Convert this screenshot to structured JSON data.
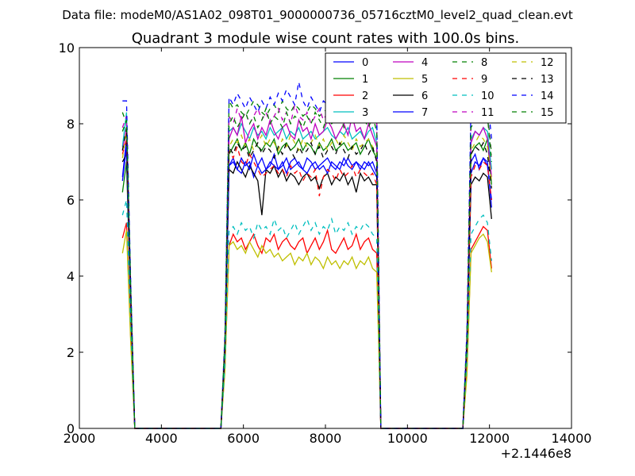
{
  "figure": {
    "suptitle": "Data file: modeM0/AS1A02_098T01_9000000736_05716cztM0_level2_quad_clean.evt"
  },
  "chart_data": {
    "type": "line",
    "title": "Quadrant 3 module wise count rates with 100.0s bins.",
    "xlabel": "",
    "ylabel": "",
    "xlim": [
      2000,
      14000
    ],
    "ylim": [
      0,
      10
    ],
    "x_offset_label": "+2.1446e8",
    "xticks": [
      2000,
      4000,
      6000,
      8000,
      10000,
      12000,
      14000
    ],
    "xtick_labels": [
      "2000",
      "4000",
      "6000",
      "8000",
      "10000",
      "12000",
      "14000"
    ],
    "yticks": [
      0,
      2,
      4,
      6,
      8,
      10
    ],
    "ytick_labels": [
      "0",
      "2",
      "4",
      "6",
      "8",
      "10"
    ],
    "grid": false,
    "legend": {
      "placement": "top-right",
      "columns": 4
    },
    "x": [
      3050,
      3150,
      3250,
      3350,
      3450,
      5450,
      5550,
      5650,
      5750,
      5850,
      5950,
      6050,
      6150,
      6250,
      6350,
      6450,
      6550,
      6650,
      6750,
      6850,
      6950,
      7050,
      7150,
      7250,
      7350,
      7450,
      7550,
      7650,
      7750,
      7850,
      7950,
      8050,
      8150,
      8250,
      8350,
      8450,
      8550,
      8650,
      8750,
      8850,
      8950,
      9050,
      9150,
      9250,
      9350,
      9450,
      11350,
      11450,
      11550,
      11650,
      11750,
      11850,
      11950,
      12050
    ],
    "series": [
      {
        "name": "0",
        "color": "#0000ff",
        "dash": "solid",
        "values": [
          6.6,
          7.6,
          3.4,
          0,
          0,
          0,
          2.0,
          6.9,
          7.0,
          6.8,
          7.1,
          6.9,
          7.0,
          6.6,
          6.9,
          7.1,
          6.8,
          6.9,
          7.2,
          6.8,
          7.0,
          6.7,
          7.0,
          7.1,
          6.9,
          6.8,
          7.1,
          7.0,
          6.8,
          6.9,
          7.0,
          7.1,
          6.9,
          6.8,
          7.0,
          6.9,
          7.1,
          6.9,
          7.0,
          6.8,
          7.0,
          6.9,
          7.0,
          6.7,
          0,
          0,
          0,
          2.2,
          7.0,
          7.2,
          6.8,
          7.1,
          7.0,
          5.8
        ]
      },
      {
        "name": "1",
        "color": "#008000",
        "dash": "solid",
        "values": [
          6.2,
          7.0,
          3.2,
          0,
          0,
          0,
          2.0,
          7.2,
          7.4,
          7.6,
          7.3,
          7.5,
          7.2,
          7.6,
          7.4,
          7.3,
          7.5,
          7.4,
          7.6,
          7.2,
          7.4,
          7.5,
          7.3,
          7.4,
          7.6,
          7.3,
          7.5,
          7.4,
          7.2,
          7.5,
          7.3,
          7.4,
          7.6,
          7.3,
          7.4,
          7.5,
          7.3,
          7.4,
          7.5,
          7.2,
          7.4,
          7.6,
          7.3,
          7.1,
          0,
          0,
          0,
          2.3,
          7.2,
          7.4,
          7.5,
          7.3,
          7.6,
          6.4
        ]
      },
      {
        "name": "2",
        "color": "#ff0000",
        "dash": "solid",
        "values": [
          5.0,
          5.4,
          2.4,
          0,
          0,
          0,
          1.6,
          4.8,
          5.1,
          4.9,
          5.0,
          4.7,
          4.9,
          5.1,
          4.8,
          4.6,
          5.0,
          4.9,
          5.1,
          4.7,
          4.9,
          5.0,
          4.8,
          4.7,
          4.9,
          5.0,
          4.6,
          4.8,
          5.0,
          4.7,
          4.9,
          5.2,
          4.7,
          4.6,
          4.8,
          5.0,
          4.7,
          4.8,
          5.1,
          4.7,
          4.9,
          5.0,
          4.7,
          4.6,
          0,
          0,
          0,
          1.5,
          4.7,
          4.9,
          5.1,
          5.3,
          5.2,
          4.2
        ]
      },
      {
        "name": "3",
        "color": "#00bfbf",
        "dash": "solid",
        "values": [
          7.4,
          8.3,
          3.8,
          0,
          0,
          0,
          2.2,
          7.8,
          7.9,
          7.7,
          8.0,
          7.8,
          7.6,
          7.9,
          7.7,
          7.8,
          7.6,
          7.9,
          7.7,
          7.8,
          7.9,
          7.6,
          7.8,
          7.7,
          7.9,
          7.6,
          7.7,
          7.8,
          7.6,
          7.7,
          7.8,
          7.9,
          7.7,
          7.6,
          7.8,
          7.7,
          7.9,
          7.6,
          7.7,
          7.8,
          7.6,
          7.8,
          7.9,
          7.5,
          0,
          0,
          0,
          2.4,
          7.6,
          7.8,
          7.7,
          7.9,
          7.8,
          6.8
        ]
      },
      {
        "name": "4",
        "color": "#bf00bf",
        "dash": "solid",
        "values": [
          7.3,
          7.9,
          3.6,
          0,
          0,
          0,
          2.1,
          7.6,
          7.9,
          7.7,
          8.2,
          7.5,
          7.8,
          8.0,
          7.6,
          7.9,
          7.7,
          8.1,
          7.8,
          7.6,
          7.9,
          8.0,
          7.7,
          7.6,
          8.1,
          7.8,
          7.9,
          7.6,
          8.0,
          7.7,
          7.8,
          8.1,
          7.9,
          7.6,
          7.8,
          8.0,
          7.7,
          8.2,
          7.8,
          7.9,
          7.6,
          8.0,
          7.7,
          7.4,
          0,
          0,
          0,
          2.3,
          7.5,
          7.8,
          7.7,
          7.9,
          7.6,
          6.6
        ]
      },
      {
        "name": "5",
        "color": "#bfbf00",
        "dash": "solid",
        "values": [
          4.6,
          5.2,
          2.3,
          0,
          0,
          0,
          1.5,
          4.8,
          4.9,
          4.7,
          4.8,
          4.6,
          4.9,
          4.7,
          4.5,
          4.8,
          4.6,
          4.7,
          4.5,
          4.6,
          4.4,
          4.5,
          4.6,
          4.3,
          4.5,
          4.4,
          4.6,
          4.3,
          4.5,
          4.4,
          4.2,
          4.5,
          4.3,
          4.4,
          4.2,
          4.4,
          4.3,
          4.5,
          4.2,
          4.4,
          4.3,
          4.5,
          4.2,
          4.1,
          0,
          0,
          0,
          1.4,
          4.6,
          4.8,
          5.0,
          5.1,
          4.9,
          4.1
        ]
      },
      {
        "name": "6",
        "color": "#000000",
        "dash": "solid",
        "values": [
          7.0,
          7.2,
          3.3,
          0,
          0,
          0,
          2.0,
          6.8,
          6.7,
          7.0,
          6.8,
          6.6,
          6.9,
          6.7,
          6.5,
          5.6,
          6.8,
          6.7,
          6.9,
          6.6,
          6.8,
          6.5,
          6.7,
          6.6,
          6.4,
          6.6,
          6.7,
          6.5,
          6.6,
          6.3,
          6.6,
          6.7,
          6.4,
          6.6,
          6.5,
          6.7,
          6.4,
          6.6,
          6.2,
          6.7,
          6.5,
          6.6,
          6.4,
          6.4,
          0,
          0,
          0,
          2.1,
          6.4,
          6.6,
          6.5,
          6.7,
          6.6,
          5.5
        ]
      },
      {
        "name": "7",
        "color": "#0000ff",
        "dash": "solid",
        "values": [
          6.5,
          7.4,
          3.3,
          0,
          0,
          0,
          2.0,
          6.9,
          7.1,
          6.8,
          6.7,
          7.0,
          6.8,
          7.2,
          6.9,
          6.7,
          6.8,
          7.0,
          6.9,
          6.8,
          6.9,
          7.1,
          6.8,
          6.9,
          7.0,
          6.8,
          6.7,
          6.9,
          7.0,
          6.8,
          6.9,
          6.7,
          7.0,
          6.9,
          6.8,
          7.1,
          6.9,
          6.8,
          7.0,
          6.9,
          6.8,
          7.0,
          6.8,
          6.6,
          0,
          0,
          0,
          2.2,
          6.7,
          7.0,
          6.9,
          7.1,
          6.9,
          6.0
        ]
      },
      {
        "name": "8",
        "color": "#008000",
        "dash": "dashed",
        "values": [
          8.3,
          8.0,
          3.7,
          0,
          0,
          0,
          2.4,
          8.6,
          8.4,
          8.5,
          8.3,
          8.2,
          8.4,
          8.6,
          8.5,
          8.3,
          8.2,
          8.4,
          8.5,
          8.3,
          8.6,
          8.4,
          8.3,
          8.5,
          8.4,
          8.2,
          8.3,
          8.5,
          8.4,
          8.2,
          8.3,
          8.4,
          8.2,
          8.3,
          8.5,
          8.4,
          8.2,
          8.3,
          8.4,
          8.6,
          8.3,
          8.4,
          8.2,
          8.1,
          0,
          0,
          0,
          2.5,
          8.3,
          8.6,
          8.4,
          8.5,
          8.3,
          7.2
        ]
      },
      {
        "name": "9",
        "color": "#ff0000",
        "dash": "dashed",
        "values": [
          7.2,
          7.6,
          3.4,
          0,
          0,
          0,
          2.1,
          7.3,
          7.1,
          7.4,
          7.0,
          6.9,
          7.2,
          7.0,
          6.8,
          6.6,
          6.7,
          6.8,
          6.9,
          6.7,
          6.8,
          6.6,
          6.9,
          6.7,
          6.8,
          6.5,
          6.7,
          6.6,
          6.8,
          6.1,
          6.6,
          6.8,
          6.7,
          6.5,
          6.8,
          6.6,
          6.7,
          6.9,
          6.6,
          6.8,
          6.7,
          6.6,
          6.7,
          6.4,
          0,
          0,
          0,
          2.2,
          6.6,
          6.9,
          6.8,
          7.0,
          6.9,
          6.0
        ]
      },
      {
        "name": "10",
        "color": "#00bfbf",
        "dash": "dashed",
        "values": [
          5.6,
          6.0,
          2.7,
          0,
          0,
          0,
          1.7,
          5.2,
          5.3,
          5.1,
          5.4,
          5.2,
          5.3,
          5.0,
          5.4,
          5.2,
          5.3,
          5.1,
          5.5,
          5.2,
          5.3,
          5.0,
          5.2,
          5.4,
          5.1,
          5.3,
          5.5,
          5.2,
          5.4,
          5.1,
          5.3,
          5.2,
          5.5,
          5.1,
          5.3,
          5.2,
          5.4,
          5.1,
          5.3,
          5.2,
          5.4,
          5.3,
          5.1,
          5.0,
          0,
          0,
          0,
          1.8,
          5.1,
          5.3,
          5.5,
          5.6,
          5.4,
          4.4
        ]
      },
      {
        "name": "11",
        "color": "#bf00bf",
        "dash": "dashed",
        "values": [
          7.9,
          8.2,
          3.7,
          0,
          0,
          0,
          2.3,
          8.2,
          8.0,
          8.4,
          8.1,
          8.3,
          8.0,
          8.2,
          8.4,
          8.1,
          8.3,
          8.0,
          8.2,
          8.4,
          8.1,
          8.3,
          8.0,
          8.5,
          8.2,
          8.1,
          8.3,
          8.0,
          8.2,
          8.4,
          8.1,
          8.3,
          8.0,
          8.2,
          8.4,
          8.1,
          8.6,
          8.3,
          8.1,
          8.2,
          8.4,
          8.1,
          8.3,
          8.0,
          0,
          0,
          0,
          2.4,
          8.0,
          8.2,
          8.4,
          8.6,
          8.3,
          7.0
        ]
      },
      {
        "name": "12",
        "color": "#bfbf00",
        "dash": "dashed",
        "values": [
          7.1,
          7.8,
          3.5,
          0,
          0,
          0,
          2.2,
          7.4,
          7.6,
          7.5,
          7.7,
          7.4,
          7.6,
          7.3,
          7.5,
          7.7,
          7.4,
          7.6,
          7.5,
          7.3,
          7.6,
          7.4,
          7.7,
          7.5,
          7.3,
          7.6,
          7.4,
          7.5,
          7.7,
          7.4,
          7.6,
          7.3,
          7.5,
          7.6,
          7.4,
          7.7,
          7.5,
          7.3,
          7.6,
          7.4,
          7.5,
          7.6,
          7.4,
          7.2,
          0,
          0,
          0,
          2.3,
          7.3,
          7.5,
          7.7,
          7.6,
          7.4,
          6.5
        ]
      },
      {
        "name": "13",
        "color": "#000000",
        "dash": "dashed",
        "values": [
          7.3,
          7.9,
          3.6,
          0,
          0,
          0,
          2.2,
          7.4,
          7.2,
          7.5,
          7.3,
          7.4,
          7.1,
          7.3,
          7.5,
          7.2,
          7.4,
          7.3,
          7.1,
          7.4,
          7.2,
          7.5,
          7.3,
          7.1,
          7.4,
          7.2,
          7.3,
          7.5,
          7.2,
          7.4,
          7.1,
          7.3,
          7.4,
          7.2,
          7.5,
          7.3,
          7.1,
          7.4,
          7.2,
          7.3,
          7.5,
          7.2,
          7.4,
          7.0,
          0,
          0,
          0,
          2.3,
          7.2,
          7.4,
          7.3,
          7.5,
          7.2,
          6.3
        ]
      },
      {
        "name": "14",
        "color": "#0000ff",
        "dash": "dashed",
        "values": [
          8.6,
          8.6,
          3.9,
          0,
          0,
          0,
          2.5,
          8.7,
          8.5,
          8.8,
          8.6,
          8.4,
          8.7,
          8.5,
          8.3,
          8.6,
          8.4,
          8.7,
          8.5,
          8.8,
          8.6,
          8.9,
          8.7,
          8.5,
          9.1,
          8.6,
          8.4,
          8.7,
          8.5,
          8.3,
          8.6,
          8.5,
          8.4,
          8.7,
          8.5,
          8.6,
          8.4,
          8.8,
          8.5,
          8.6,
          8.7,
          8.4,
          8.6,
          8.3,
          0,
          0,
          0,
          2.6,
          8.5,
          8.7,
          8.6,
          8.9,
          8.7,
          7.6
        ]
      },
      {
        "name": "15",
        "color": "#008000",
        "dash": "dashed",
        "values": [
          7.8,
          8.1,
          3.7,
          0,
          0,
          0,
          2.3,
          8.0,
          8.2,
          7.9,
          8.1,
          8.3,
          8.0,
          8.2,
          7.9,
          8.1,
          8.4,
          8.0,
          8.2,
          8.1,
          7.9,
          8.3,
          8.0,
          8.2,
          8.1,
          7.9,
          8.2,
          8.0,
          8.3,
          8.1,
          7.9,
          8.2,
          8.0,
          8.1,
          8.3,
          7.9,
          8.1,
          8.2,
          8.0,
          8.3,
          8.1,
          7.9,
          8.2,
          7.8,
          0,
          0,
          0,
          2.4,
          7.9,
          8.1,
          8.3,
          8.5,
          8.2,
          7.0
        ]
      }
    ]
  }
}
